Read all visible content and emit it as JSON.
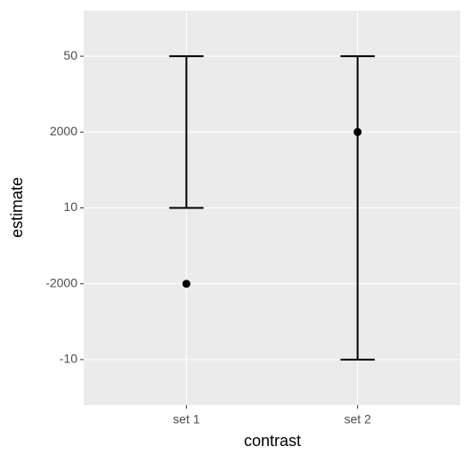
{
  "chart_data": {
    "type": "errorbar",
    "x_label": "contrast",
    "y_label": "estimate",
    "categories": [
      "set 1",
      "set 2"
    ],
    "ycategories": [
      "-10",
      "-2000",
      "10",
      "2000",
      "50"
    ],
    "series": [
      {
        "name": "estimate",
        "color": "#000000",
        "values": [
          "-2000",
          "2000"
        ],
        "lower": [
          "10",
          "-10"
        ],
        "upper": [
          "50",
          "50"
        ]
      }
    ],
    "grid": true
  }
}
